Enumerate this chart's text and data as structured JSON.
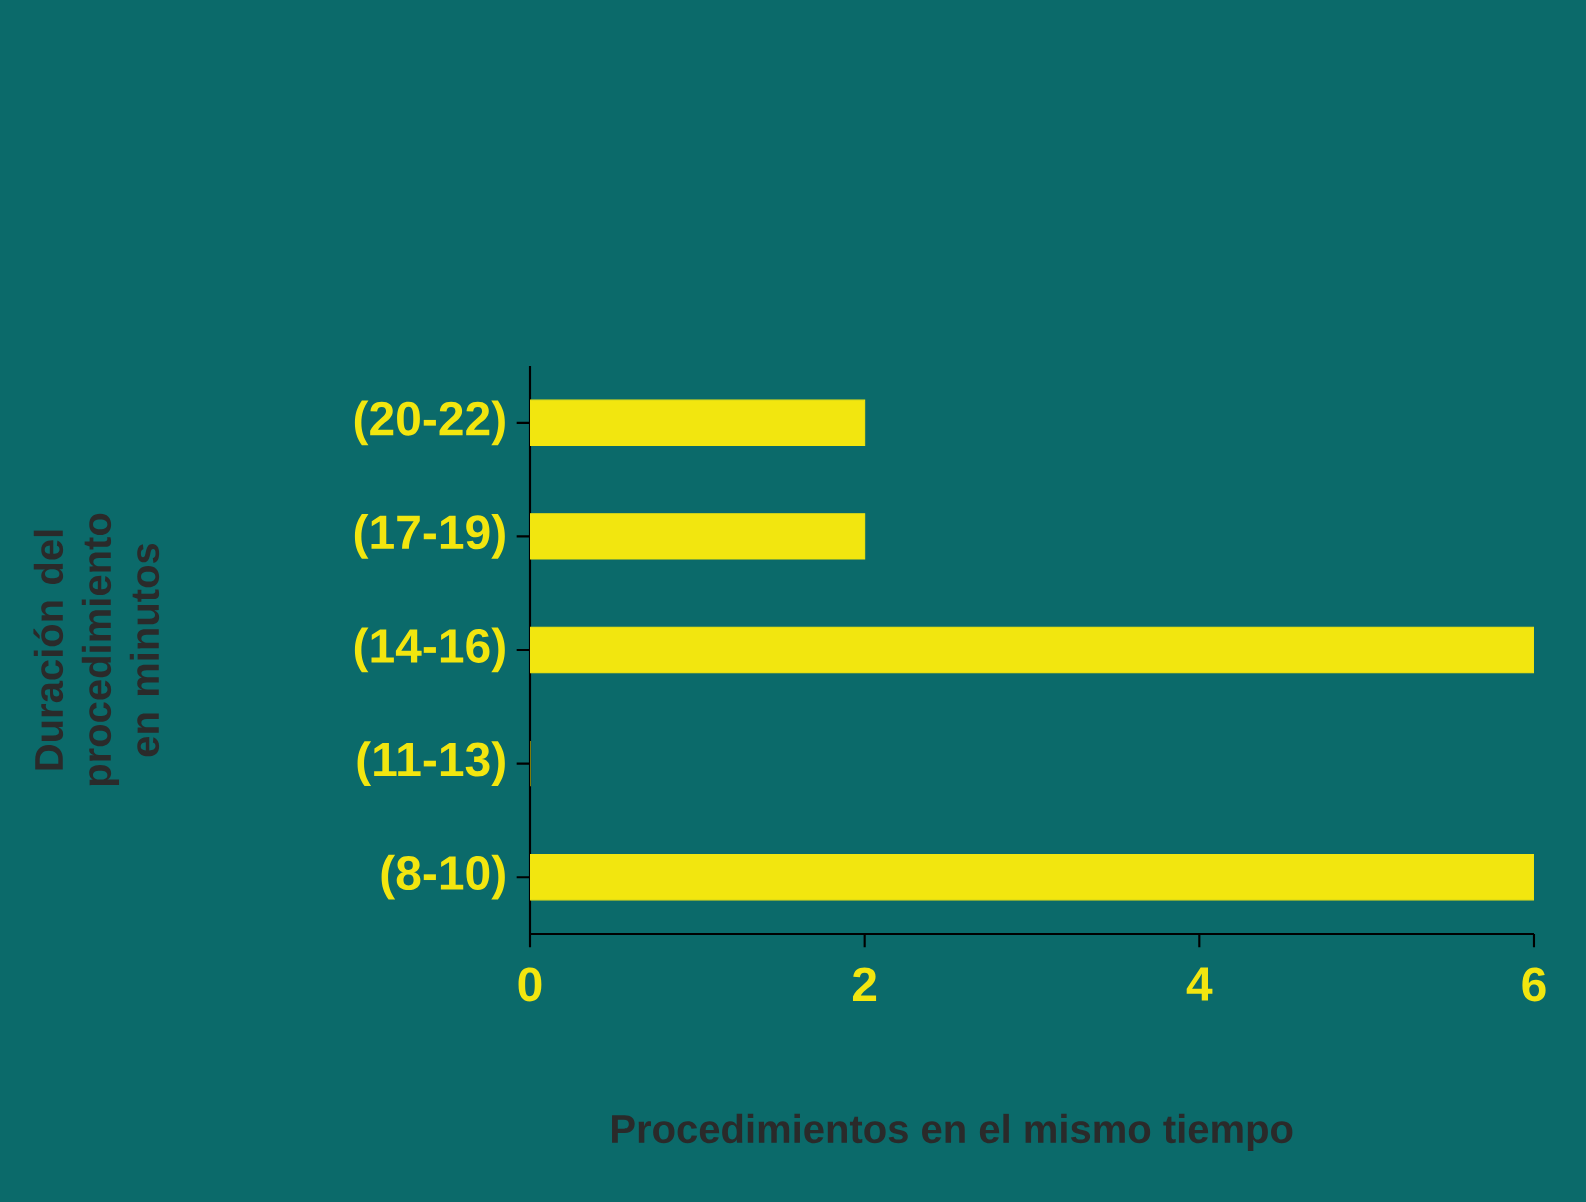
{
  "chart_data": {
    "type": "bar",
    "orientation": "horizontal",
    "xlabel": "Procedimientos en el mismo tiempo",
    "ylabel": "Duración del procedimiento en minutos",
    "categories": [
      "(20-22)",
      "(17-19)",
      "(14-16)",
      "(11-13)",
      "(8-10)"
    ],
    "values": [
      2,
      2,
      6,
      0,
      6
    ],
    "color": "#f2e60f",
    "xlim": [
      0,
      6
    ],
    "xticks": [
      0,
      2,
      4,
      6
    ],
    "grid": false
  }
}
